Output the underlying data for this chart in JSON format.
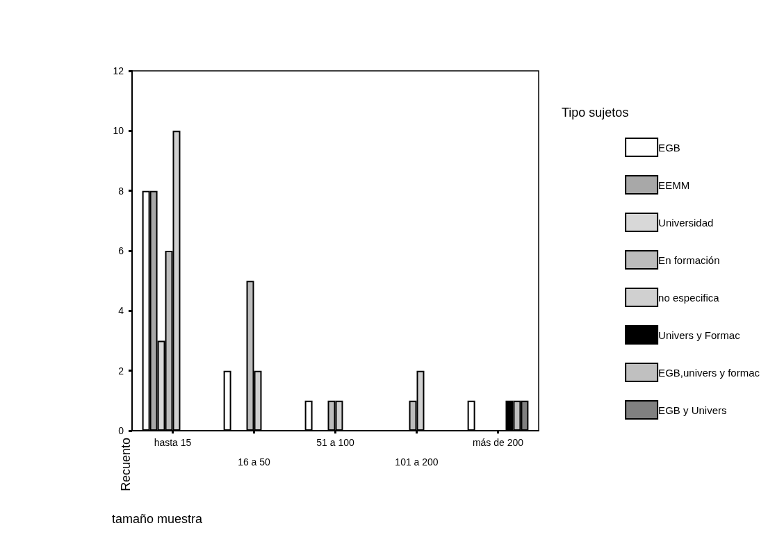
{
  "chart_data": {
    "type": "bar",
    "xlabel": "tamaño muestra",
    "ylabel": "Recuento",
    "legend_title": "Tipo sujetos",
    "categories": [
      "hasta 15",
      "16 a 50",
      "51 a 100",
      "101 a 200",
      "más de 200"
    ],
    "series": [
      {
        "name": "EGB",
        "color": "#ffffff",
        "values": [
          8,
          2,
          1,
          null,
          1
        ]
      },
      {
        "name": "EEMM",
        "color": "#a8a8a8",
        "values": [
          8,
          null,
          null,
          null,
          null
        ]
      },
      {
        "name": "Universidad",
        "color": "#d8d8d8",
        "values": [
          3,
          null,
          null,
          null,
          null
        ]
      },
      {
        "name": "En formación",
        "color": "#bcbcbc",
        "values": [
          6,
          5,
          1,
          1,
          null
        ]
      },
      {
        "name": "no especifica",
        "color": "#d0d0d0",
        "values": [
          10,
          2,
          1,
          2,
          null
        ]
      },
      {
        "name": "Univers y Formac",
        "color": "#000000",
        "values": [
          null,
          null,
          null,
          null,
          1
        ]
      },
      {
        "name": "EGB,univers y formac",
        "color": "#c0c0c0",
        "values": [
          null,
          null,
          null,
          null,
          1
        ]
      },
      {
        "name": "EGB y Univers",
        "color": "#808080",
        "values": [
          null,
          null,
          null,
          null,
          1
        ]
      }
    ],
    "ylim": [
      0,
      12
    ],
    "yticks": [
      0,
      2,
      4,
      6,
      8,
      10,
      12
    ],
    "grid": false,
    "legend": "right"
  }
}
